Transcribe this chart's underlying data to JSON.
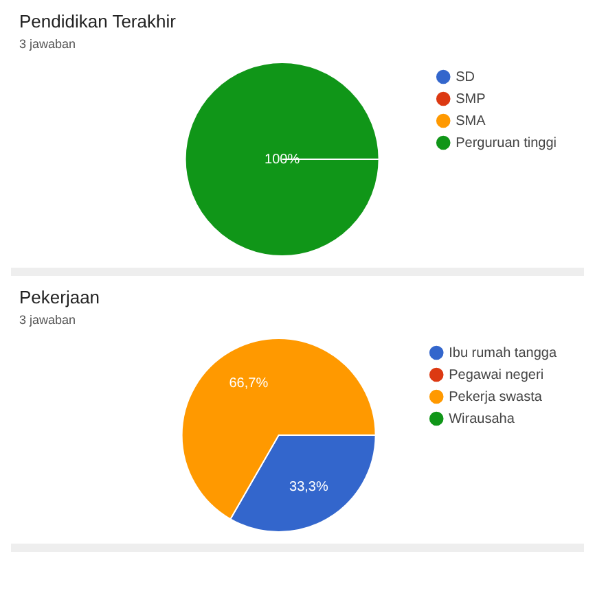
{
  "chart_data": [
    {
      "type": "pie",
      "title": "Pendidikan Terakhir",
      "subtitle": "3 jawaban",
      "categories": [
        "SD",
        "SMP",
        "SMA",
        "Perguruan tinggi"
      ],
      "values": [
        0,
        0,
        0,
        100
      ],
      "colors": [
        "#3366cc",
        "#dc3912",
        "#ff9900",
        "#109618"
      ],
      "value_labels": [
        null,
        null,
        null,
        "100%"
      ],
      "legend": "right"
    },
    {
      "type": "pie",
      "title": "Pekerjaan",
      "subtitle": "3 jawaban",
      "categories": [
        "Ibu rumah tangga",
        "Pegawai negeri",
        "Pekerja swasta",
        "Wirausaha"
      ],
      "values": [
        33.3,
        0,
        66.7,
        0
      ],
      "colors": [
        "#3366cc",
        "#dc3912",
        "#ff9900",
        "#109618"
      ],
      "value_labels": [
        "33,3%",
        null,
        "66,7%",
        null
      ],
      "legend": "right"
    }
  ]
}
